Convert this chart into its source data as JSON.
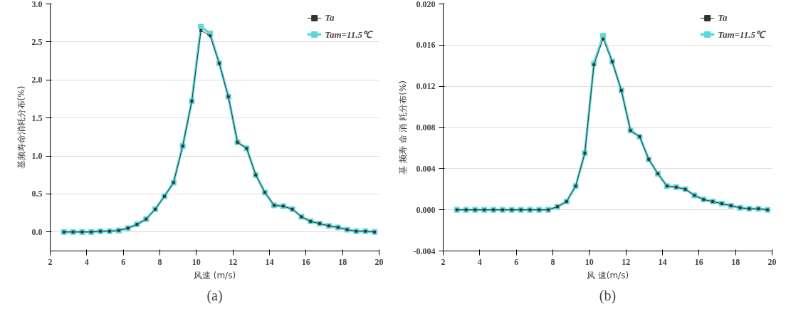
{
  "chart_data": [
    {
      "type": "line",
      "xlabel": "风速 (m/s)",
      "ylabel": "基频寿命消耗分布(%)",
      "annotations": [
        "(a)"
      ],
      "x": [
        2.75,
        3.25,
        3.75,
        4.25,
        4.75,
        5.25,
        5.75,
        6.25,
        6.75,
        7.25,
        7.75,
        8.25,
        8.75,
        9.25,
        9.75,
        10.25,
        10.75,
        11.25,
        11.75,
        12.25,
        12.75,
        13.25,
        13.75,
        14.25,
        14.75,
        15.25,
        15.75,
        16.25,
        16.75,
        17.25,
        17.75,
        18.25,
        18.75,
        19.25,
        19.75
      ],
      "series": [
        {
          "name": "Ta",
          "color": "#333333",
          "values": [
            0,
            0,
            0,
            0,
            0.01,
            0.01,
            0.02,
            0.05,
            0.1,
            0.17,
            0.3,
            0.47,
            0.65,
            1.13,
            1.72,
            2.65,
            2.58,
            2.22,
            1.78,
            1.18,
            1.1,
            0.75,
            0.52,
            0.35,
            0.34,
            0.3,
            0.2,
            0.14,
            0.11,
            0.08,
            0.06,
            0.03,
            0.01,
            0.01,
            0
          ]
        },
        {
          "name": "Tam=11.5℃",
          "color": "#5ad8dc",
          "values": [
            0,
            0,
            0,
            0,
            0.01,
            0.01,
            0.02,
            0.05,
            0.1,
            0.17,
            0.3,
            0.47,
            0.65,
            1.13,
            1.72,
            2.7,
            2.61,
            2.22,
            1.78,
            1.18,
            1.1,
            0.75,
            0.52,
            0.35,
            0.34,
            0.3,
            0.2,
            0.14,
            0.11,
            0.08,
            0.06,
            0.03,
            0.01,
            0.01,
            0
          ]
        }
      ],
      "xlim": [
        2,
        20
      ],
      "xticks": [
        2,
        4,
        6,
        8,
        10,
        12,
        14,
        16,
        18,
        20
      ],
      "ylim": [
        -0.25,
        3.0
      ],
      "yticks": [
        {
          "value": 0,
          "label": "0.0"
        },
        {
          "value": 0.5,
          "label": "0.5"
        },
        {
          "value": 1,
          "label": "1.0"
        },
        {
          "value": 1.5,
          "label": "1.5"
        },
        {
          "value": 2,
          "label": "2.0"
        },
        {
          "value": 2.5,
          "label": "2.5"
        },
        {
          "value": 3,
          "label": "3.0"
        }
      ],
      "grid": "y",
      "legend": "top right",
      "marker": "square",
      "line_style": "solid"
    },
    {
      "type": "line",
      "xlabel": "风 速(m/s)",
      "ylabel": "基 频寿 命 消 耗分布(%)",
      "annotations": [
        "(b)"
      ],
      "x": [
        2.75,
        3.25,
        3.75,
        4.25,
        4.75,
        5.25,
        5.75,
        6.25,
        6.75,
        7.25,
        7.75,
        8.25,
        8.75,
        9.25,
        9.75,
        10.25,
        10.75,
        11.25,
        11.75,
        12.25,
        12.75,
        13.25,
        13.75,
        14.25,
        14.75,
        15.25,
        15.75,
        16.25,
        16.75,
        17.25,
        17.75,
        18.25,
        18.75,
        19.25,
        19.75
      ],
      "series": [
        {
          "name": "Ta",
          "color": "#333333",
          "values": [
            0,
            0,
            0,
            0,
            0,
            0,
            0,
            0,
            0,
            0,
            0,
            0.0003,
            0.0008,
            0.0023,
            0.0055,
            0.0141,
            0.0166,
            0.0144,
            0.0116,
            0.0077,
            0.0071,
            0.0049,
            0.0035,
            0.0023,
            0.0022,
            0.002,
            0.0014,
            0.001,
            0.0008,
            0.0006,
            0.0004,
            0.0002,
            0.0001,
            0.0001,
            0
          ]
        },
        {
          "name": "Tam=11.5℃",
          "color": "#5ad8dc",
          "values": [
            0,
            0,
            0,
            0,
            0,
            0,
            0,
            0,
            0,
            0,
            0,
            0.0003,
            0.0008,
            0.0023,
            0.0055,
            0.0142,
            0.0169,
            0.0144,
            0.0116,
            0.0077,
            0.0071,
            0.0049,
            0.0035,
            0.0023,
            0.0022,
            0.002,
            0.0014,
            0.001,
            0.0008,
            0.0006,
            0.0004,
            0.0002,
            0.0001,
            0.0001,
            0
          ]
        }
      ],
      "xlim": [
        2,
        20
      ],
      "xticks": [
        2,
        4,
        6,
        8,
        10,
        12,
        14,
        16,
        18,
        20
      ],
      "ylim": [
        -0.004,
        0.02
      ],
      "yticks": [
        {
          "value": -0.004,
          "label": "-0.004"
        },
        {
          "value": 0,
          "label": "0.000"
        },
        {
          "value": 0.004,
          "label": "0.004"
        },
        {
          "value": 0.008,
          "label": "0.008"
        },
        {
          "value": 0.012,
          "label": "0.012"
        },
        {
          "value": 0.016,
          "label": "0.016"
        },
        {
          "value": 0.02,
          "label": "0.020"
        }
      ],
      "grid": "y",
      "legend": "top right",
      "marker": "square",
      "line_style": "solid"
    }
  ]
}
